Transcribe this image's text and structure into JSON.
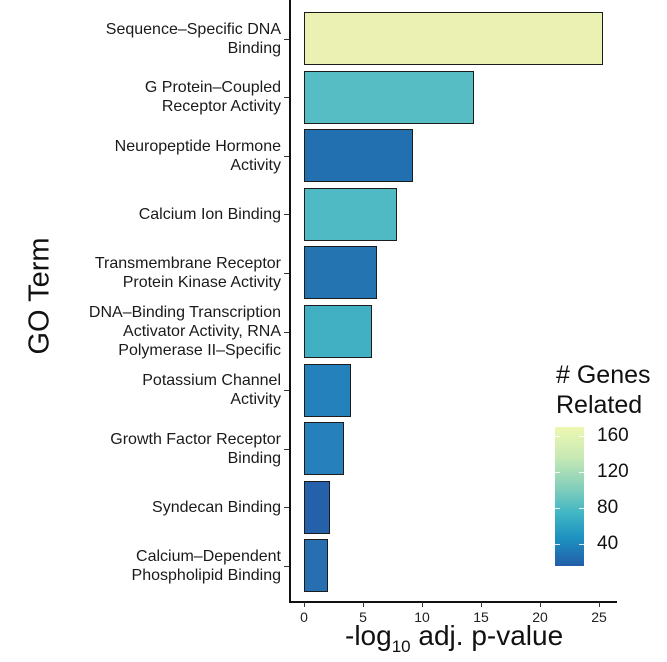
{
  "chart_data": {
    "type": "bar",
    "orientation": "horizontal",
    "title": "",
    "xlabel": "-log10 adj. p-value",
    "ylabel": "GO Term",
    "xlim": [
      0,
      26.5
    ],
    "xticks": [
      0,
      5,
      10,
      15,
      20,
      25
    ],
    "grid": false,
    "categories": [
      "Sequence–Specific DNA\nBinding",
      "G Protein–Coupled\nReceptor Activity",
      "Neuropeptide Hormone\nActivity",
      "Calcium Ion Binding",
      "Transmembrane Receptor\nProtein Kinase Activity",
      "DNA–Binding Transcription\nActivator Activity, RNA\nPolymerase II–Specific",
      "Potassium Channel\nActivity",
      "Growth Factor Receptor\nBinding",
      "Syndecan Binding",
      "Calcium–Dependent\nPhospholipid Binding"
    ],
    "values": [
      25.3,
      14.4,
      9.2,
      7.9,
      6.2,
      5.8,
      4.0,
      3.4,
      2.2,
      2.0
    ],
    "fill_variable": "# Genes Related",
    "genes_related_estimate": [
      160,
      80,
      30,
      85,
      35,
      75,
      40,
      40,
      20,
      30
    ],
    "bar_colors": [
      "#ebf1b3",
      "#55bdc3",
      "#2270b0",
      "#4fbac3",
      "#2474b2",
      "#41b0c3",
      "#2581bb",
      "#2580bb",
      "#2561aa",
      "#276fb0"
    ],
    "legend": {
      "title": "# Genes\nRelated",
      "type": "colorbar",
      "position": "right",
      "ticks": [
        40,
        80,
        120,
        160
      ],
      "colormap": "YlGnBu",
      "range_estimate": [
        15,
        170
      ]
    }
  },
  "axes": {
    "y_title": "GO Term",
    "x_title_prefix": "-log",
    "x_title_sub": "10",
    "x_title_suffix": " adj. p-value",
    "x_tick_labels": [
      "0",
      "5",
      "10",
      "15",
      "20",
      "25"
    ]
  },
  "legend": {
    "title": "# Genes\nRelated",
    "labels": [
      "160",
      "120",
      "80",
      "40"
    ]
  }
}
